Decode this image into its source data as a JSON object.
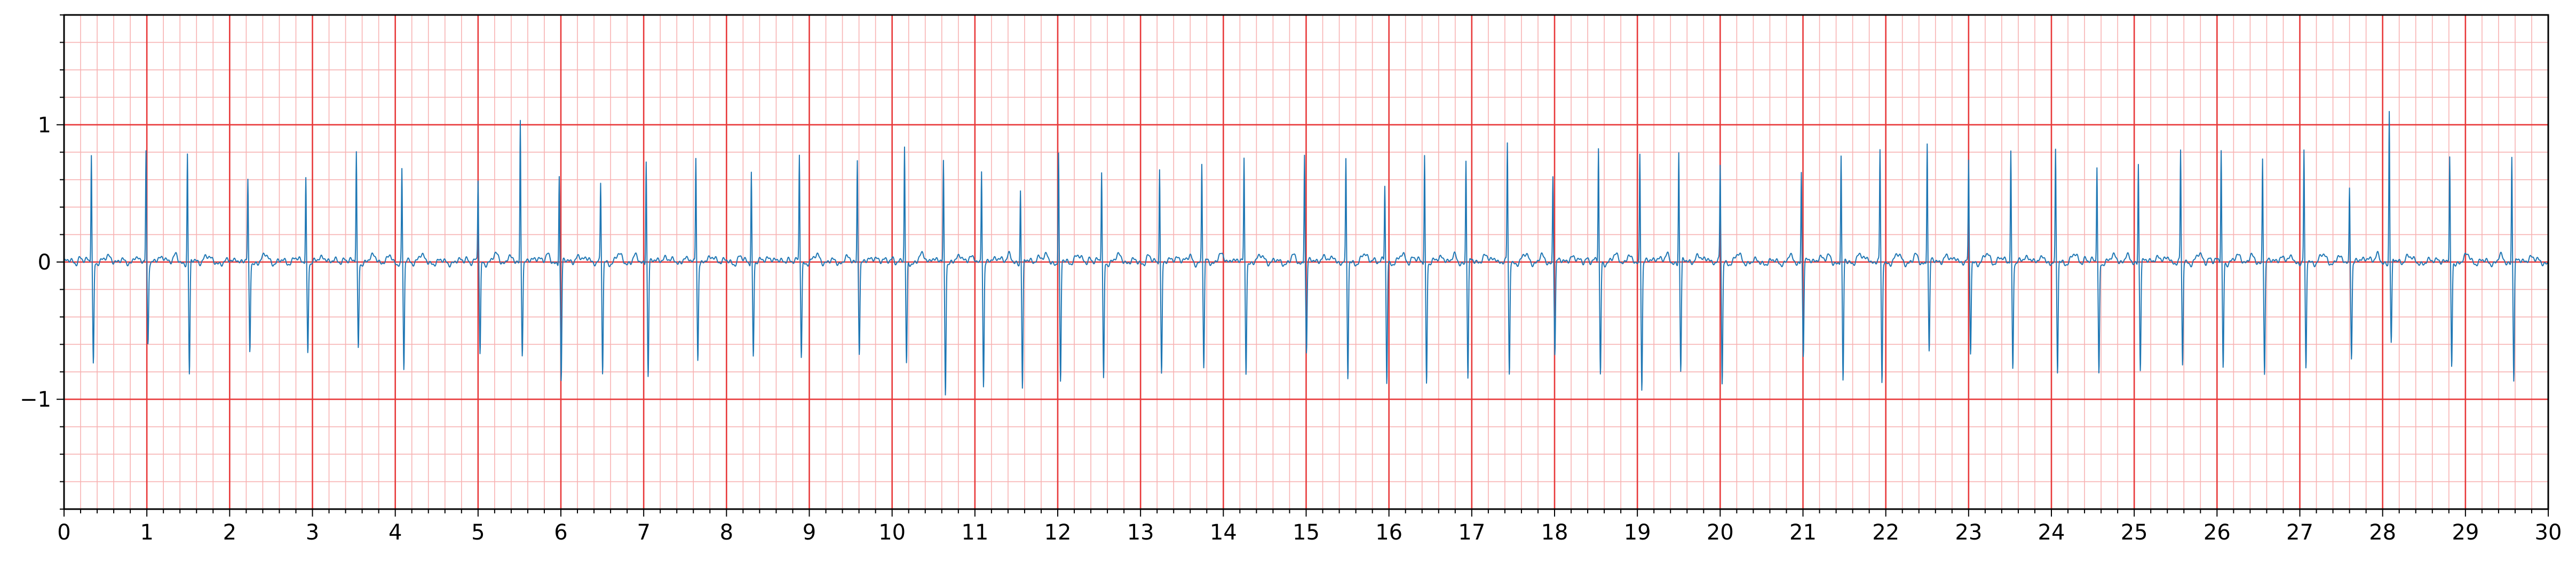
{
  "chart_data": {
    "type": "line",
    "title": "",
    "xlabel": "",
    "ylabel": "",
    "xlim": [
      0,
      30
    ],
    "ylim": [
      -1.8,
      1.8
    ],
    "grid": {
      "major": {
        "x_step": 1,
        "y_step": 1,
        "color": "#e8393a"
      },
      "minor": {
        "x_step": 0.2,
        "y_step": 0.2,
        "color": "#f7b2b2"
      }
    },
    "x_ticks": [
      "0",
      "1",
      "2",
      "3",
      "4",
      "5",
      "6",
      "7",
      "8",
      "9",
      "10",
      "11",
      "12",
      "13",
      "14",
      "15",
      "16",
      "17",
      "18",
      "19",
      "20",
      "21",
      "22",
      "23",
      "24",
      "25",
      "26",
      "27",
      "28",
      "29",
      "30"
    ],
    "y_ticks": [
      {
        "value": 1,
        "label": "1"
      },
      {
        "value": 0,
        "label": "0"
      },
      {
        "value": -1,
        "label": "−1"
      }
    ],
    "series": [
      {
        "color": "#1f77b4",
        "beats": [
          [
            0.33,
            0.8,
            -0.74
          ],
          [
            0.99,
            0.82,
            -0.58
          ],
          [
            1.49,
            0.79,
            -0.83
          ],
          [
            2.22,
            0.58,
            -0.66
          ],
          [
            2.92,
            0.62,
            -0.65
          ],
          [
            3.53,
            0.8,
            -0.63
          ],
          [
            4.08,
            0.67,
            -0.8
          ],
          [
            5.0,
            0.59,
            -0.68
          ],
          [
            5.51,
            1.04,
            -0.65
          ],
          [
            5.98,
            0.65,
            -0.87
          ],
          [
            6.48,
            0.55,
            -0.82
          ],
          [
            7.03,
            0.76,
            -0.82
          ],
          [
            7.63,
            0.77,
            -0.7
          ],
          [
            8.3,
            0.67,
            -0.68
          ],
          [
            8.88,
            0.77,
            -0.68
          ],
          [
            9.58,
            0.75,
            -0.64
          ],
          [
            10.15,
            0.82,
            -0.75
          ],
          [
            10.62,
            0.73,
            -0.95
          ],
          [
            11.08,
            0.68,
            -0.89
          ],
          [
            11.55,
            0.54,
            -0.92
          ],
          [
            12.01,
            0.8,
            -0.9
          ],
          [
            12.53,
            0.66,
            -0.86
          ],
          [
            13.23,
            0.71,
            -0.81
          ],
          [
            13.74,
            0.71,
            -0.78
          ],
          [
            14.25,
            0.74,
            -0.8
          ],
          [
            14.98,
            0.81,
            -0.66
          ],
          [
            15.48,
            0.72,
            -0.86
          ],
          [
            15.95,
            0.55,
            -0.88
          ],
          [
            16.43,
            0.79,
            -0.88
          ],
          [
            16.93,
            0.75,
            -0.85
          ],
          [
            17.43,
            0.85,
            -0.83
          ],
          [
            17.98,
            0.64,
            -0.66
          ],
          [
            18.53,
            0.83,
            -0.82
          ],
          [
            19.03,
            0.8,
            -0.91
          ],
          [
            19.5,
            0.81,
            -0.8
          ],
          [
            20.0,
            0.69,
            -0.9
          ],
          [
            20.98,
            0.67,
            -0.67
          ],
          [
            21.46,
            0.77,
            -0.89
          ],
          [
            21.93,
            0.8,
            -0.9
          ],
          [
            22.5,
            0.89,
            -0.66
          ],
          [
            23.0,
            0.71,
            -0.67
          ],
          [
            23.51,
            0.82,
            -0.77
          ],
          [
            24.05,
            0.79,
            -0.82
          ],
          [
            24.55,
            0.7,
            -0.82
          ],
          [
            25.05,
            0.73,
            -0.77
          ],
          [
            25.56,
            0.8,
            -0.77
          ],
          [
            26.05,
            0.82,
            -0.77
          ],
          [
            26.55,
            0.77,
            -0.8
          ],
          [
            27.05,
            0.8,
            -0.8
          ],
          [
            27.6,
            0.55,
            -0.68
          ],
          [
            28.08,
            1.11,
            -0.6
          ],
          [
            28.81,
            0.74,
            -0.77
          ],
          [
            29.56,
            0.78,
            -0.85
          ]
        ]
      }
    ]
  }
}
